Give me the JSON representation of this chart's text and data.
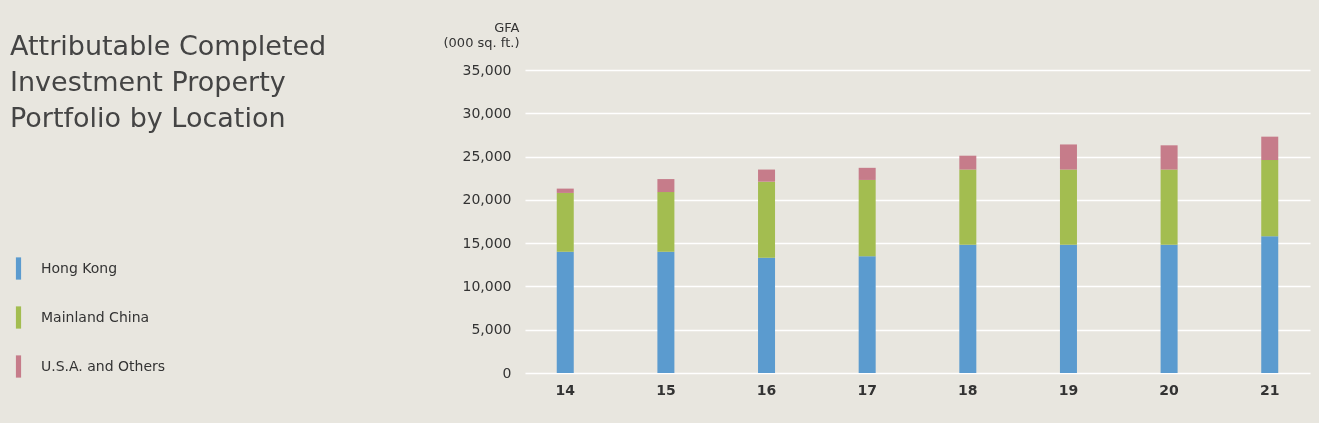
{
  "chart_data": {
    "type": "bar",
    "stacked": true,
    "title": "Attributable Completed Investment Property Portfolio by Location",
    "ylabel": "GFA\n(000 sq. ft.)",
    "categories": [
      "14",
      "15",
      "16",
      "17",
      "18",
      "19",
      "20",
      "21"
    ],
    "series": [
      {
        "name": "Hong Kong",
        "color": "#5b9bcf",
        "values": [
          14000,
          14000,
          13300,
          13500,
          14800,
          14800,
          14800,
          15800
        ]
      },
      {
        "name": "Mainland China",
        "color": "#a3bd50",
        "values": [
          6800,
          6900,
          8800,
          8800,
          8700,
          8700,
          8700,
          8800
        ]
      },
      {
        "name": "U.S.A. and Others",
        "color": "#c67c8a",
        "values": [
          500,
          1500,
          1400,
          1400,
          1600,
          2900,
          2800,
          2700
        ]
      }
    ],
    "ylim": [
      0,
      35000
    ],
    "yticks": [
      0,
      {
        "value": 5000,
        "label": "5,000"
      },
      {
        "value": 10000,
        "label": "10,000"
      },
      {
        "value": 15000,
        "label": "15,000"
      },
      {
        "value": 20000,
        "label": "20,000"
      },
      {
        "value": 25000,
        "label": "25,000"
      },
      {
        "value": 30000,
        "label": "30,000"
      },
      {
        "value": 35000,
        "label": "35,000"
      }
    ],
    "grid": "y",
    "legend": "left"
  }
}
